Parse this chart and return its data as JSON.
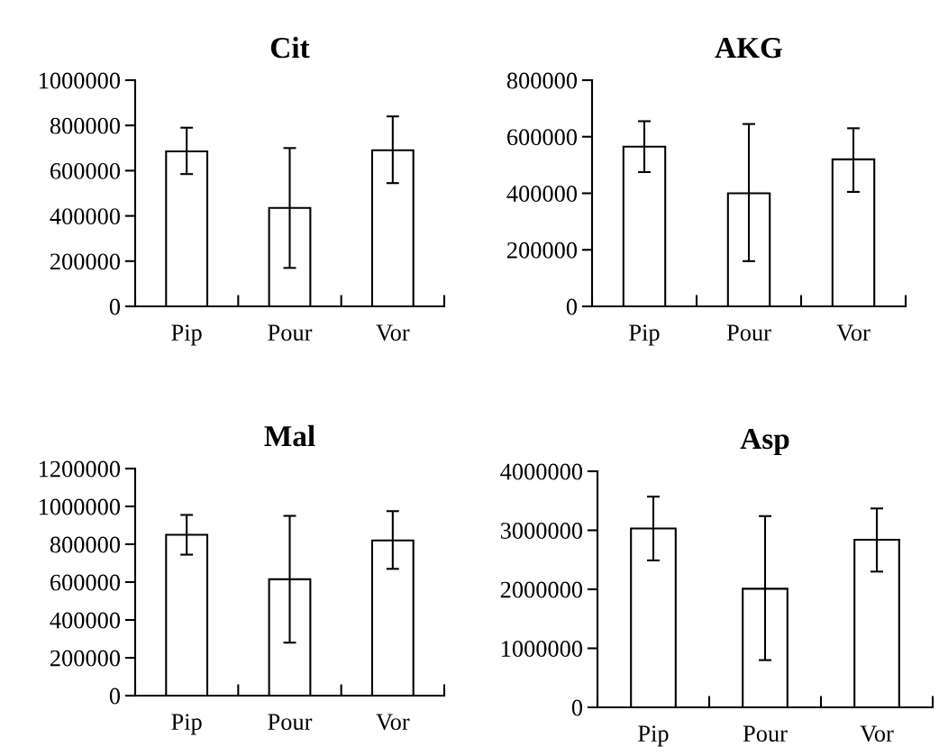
{
  "chart_data": [
    {
      "type": "bar",
      "title": "Cit",
      "categories": [
        "Pip",
        "Pour",
        "Vor"
      ],
      "values": [
        685000,
        435000,
        690000
      ],
      "errors": [
        [
          585000,
          790000
        ],
        [
          170000,
          700000
        ],
        [
          545000,
          840000
        ]
      ],
      "color": "#ffffff",
      "ylim": [
        0,
        1000000
      ],
      "yticks": [
        0,
        200000,
        400000,
        600000,
        800000,
        1000000
      ],
      "grid": false,
      "legend": false
    },
    {
      "type": "bar",
      "title": "AKG",
      "categories": [
        "Pip",
        "Pour",
        "Vor"
      ],
      "values": [
        565000,
        400000,
        520000
      ],
      "errors": [
        [
          475000,
          655000
        ],
        [
          160000,
          645000
        ],
        [
          405000,
          630000
        ]
      ],
      "color": "#ffffff",
      "ylim": [
        0,
        800000
      ],
      "yticks": [
        0,
        200000,
        400000,
        600000,
        800000
      ],
      "grid": false,
      "legend": false
    },
    {
      "type": "bar",
      "title": "Mal",
      "categories": [
        "Pip",
        "Pour",
        "Vor"
      ],
      "values": [
        850000,
        615000,
        820000
      ],
      "errors": [
        [
          745000,
          955000
        ],
        [
          280000,
          950000
        ],
        [
          670000,
          975000
        ]
      ],
      "color": "#ffffff",
      "ylim": [
        0,
        1200000
      ],
      "yticks": [
        0,
        200000,
        400000,
        600000,
        800000,
        1000000,
        1200000
      ],
      "grid": false,
      "legend": false
    },
    {
      "type": "bar",
      "title": "Asp",
      "categories": [
        "Pip",
        "Pour",
        "Vor"
      ],
      "values": [
        3030000,
        2010000,
        2840000
      ],
      "errors": [
        [
          2490000,
          3570000
        ],
        [
          800000,
          3240000
        ],
        [
          2300000,
          3370000
        ]
      ],
      "color": "#ffffff",
      "ylim": [
        0,
        4000000
      ],
      "yticks": [
        0,
        1000000,
        2000000,
        3000000,
        4000000
      ],
      "grid": false,
      "legend": false
    }
  ]
}
